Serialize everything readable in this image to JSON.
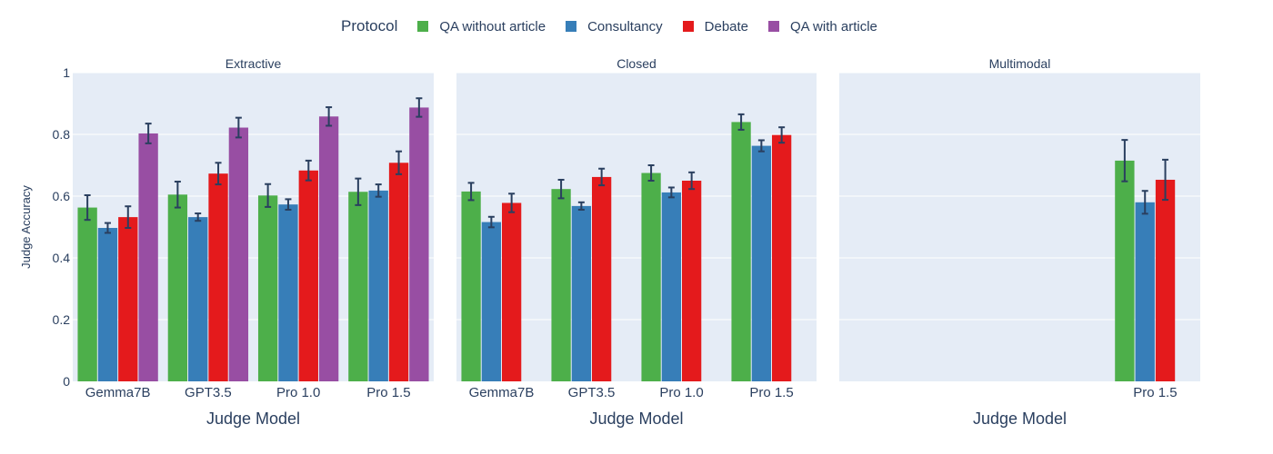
{
  "legend": {
    "title": "Protocol",
    "items": [
      {
        "label": "QA without article",
        "color": "#4daf4a"
      },
      {
        "label": "Consultancy",
        "color": "#377eb8"
      },
      {
        "label": "Debate",
        "color": "#e41a1c"
      },
      {
        "label": "QA with article",
        "color": "#984ea3"
      }
    ]
  },
  "chart_data": {
    "type": "bar",
    "ylabel": "Judge Accuracy",
    "ylim": [
      0,
      1
    ],
    "yticks": [
      0,
      0.2,
      0.4,
      0.6,
      0.8,
      1
    ],
    "ytick_labels": [
      "0",
      "0.2",
      "0.4",
      "0.6",
      "0.8",
      "1"
    ],
    "legend_position": "top",
    "grid": true,
    "panels": [
      {
        "title": "Extractive",
        "xlabel": "Judge Model",
        "categories": [
          "Gemma7B",
          "GPT3.5",
          "Pro 1.0",
          "Pro 1.5"
        ],
        "series": [
          {
            "name": "QA without article",
            "values": [
              0.563,
              0.605,
              0.602,
              0.614
            ],
            "errors": [
              0.04,
              0.042,
              0.037,
              0.043
            ]
          },
          {
            "name": "Consultancy",
            "values": [
              0.497,
              0.532,
              0.573,
              0.618
            ],
            "errors": [
              0.016,
              0.012,
              0.017,
              0.02
            ]
          },
          {
            "name": "Debate",
            "values": [
              0.532,
              0.673,
              0.683,
              0.708
            ],
            "errors": [
              0.035,
              0.035,
              0.032,
              0.037
            ]
          },
          {
            "name": "QA with article",
            "values": [
              0.803,
              0.822,
              0.858,
              0.887
            ],
            "errors": [
              0.032,
              0.032,
              0.03,
              0.03
            ]
          }
        ]
      },
      {
        "title": "Closed",
        "xlabel": "Judge Model",
        "categories": [
          "Gemma7B",
          "GPT3.5",
          "Pro 1.0",
          "Pro 1.5"
        ],
        "series": [
          {
            "name": "QA without article",
            "values": [
              0.615,
              0.623,
              0.675,
              0.84
            ],
            "errors": [
              0.028,
              0.03,
              0.025,
              0.025
            ]
          },
          {
            "name": "Consultancy",
            "values": [
              0.516,
              0.568,
              0.612,
              0.763
            ],
            "errors": [
              0.017,
              0.012,
              0.016,
              0.018
            ]
          },
          {
            "name": "Debate",
            "values": [
              0.578,
              0.662,
              0.65,
              0.798
            ],
            "errors": [
              0.03,
              0.027,
              0.027,
              0.025
            ]
          },
          {
            "name": "QA with article",
            "values": [
              null,
              null,
              null,
              null
            ],
            "errors": [
              null,
              null,
              null,
              null
            ]
          }
        ]
      },
      {
        "title": "Multimodal",
        "xlabel": "Judge Model",
        "categories": [
          "",
          "",
          "",
          "Pro 1.5"
        ],
        "series": [
          {
            "name": "QA without article",
            "values": [
              null,
              null,
              null,
              0.715
            ],
            "errors": [
              null,
              null,
              null,
              0.067
            ]
          },
          {
            "name": "Consultancy",
            "values": [
              null,
              null,
              null,
              0.58
            ],
            "errors": [
              null,
              null,
              null,
              0.037
            ]
          },
          {
            "name": "Debate",
            "values": [
              null,
              null,
              null,
              0.653
            ],
            "errors": [
              null,
              null,
              null,
              0.065
            ]
          },
          {
            "name": "QA with article",
            "values": [
              null,
              null,
              null,
              null
            ],
            "errors": [
              null,
              null,
              null,
              null
            ]
          }
        ]
      }
    ]
  }
}
